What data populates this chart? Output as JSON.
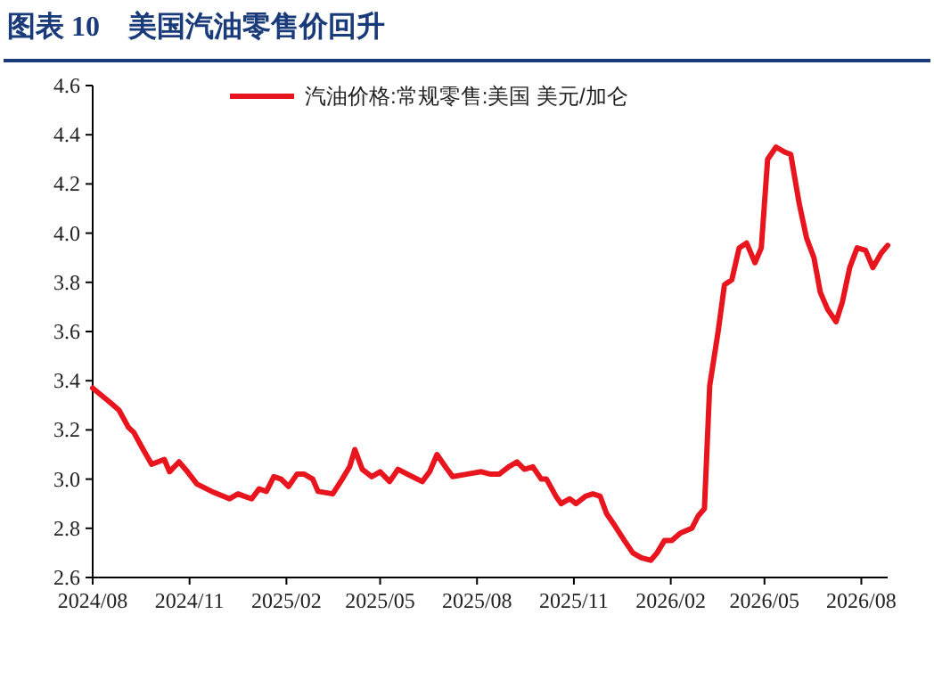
{
  "chart_data": {
    "type": "line",
    "title": "图表 10　美国汽油零售价回升",
    "x": [
      "2024-08-01",
      "2024-08-18",
      "2024-08-26",
      "2024-09-04",
      "2024-09-09",
      "2024-09-18",
      "2024-09-26",
      "2024-10-08",
      "2024-10-13",
      "2024-10-22",
      "2024-10-30",
      "2024-11-08",
      "2024-11-22",
      "2024-12-09",
      "2024-12-17",
      "2024-12-23",
      "2024-12-30",
      "2025-01-06",
      "2025-01-13",
      "2025-01-20",
      "2025-01-27",
      "2025-02-03",
      "2025-02-11",
      "2025-02-18",
      "2025-02-26",
      "2025-03-03",
      "2025-03-17",
      "2025-03-26",
      "2025-04-02",
      "2025-04-07",
      "2025-04-14",
      "2025-04-23",
      "2025-05-01",
      "2025-05-10",
      "2025-05-18",
      "2025-05-27",
      "2025-06-10",
      "2025-06-17",
      "2025-06-24",
      "2025-07-02",
      "2025-07-09",
      "2025-07-22",
      "2025-08-05",
      "2025-08-14",
      "2025-08-22",
      "2025-08-31",
      "2025-09-08",
      "2025-09-15",
      "2025-09-23",
      "2025-10-01",
      "2025-10-06",
      "2025-10-15",
      "2025-10-20",
      "2025-10-28",
      "2025-11-03",
      "2025-11-12",
      "2025-11-19",
      "2025-11-26",
      "2025-12-02",
      "2025-12-10",
      "2025-12-19",
      "2025-12-27",
      "2026-01-04",
      "2026-01-13",
      "2026-01-19",
      "2026-01-26",
      "2026-02-02",
      "2026-02-10",
      "2026-02-21",
      "2026-02-27",
      "2026-03-05",
      "2026-03-10",
      "2026-03-18",
      "2026-03-24",
      "2026-03-31",
      "2026-04-07",
      "2026-04-14",
      "2026-04-22",
      "2026-04-28",
      "2026-05-04",
      "2026-05-12",
      "2026-05-20",
      "2026-05-26",
      "2026-06-03",
      "2026-06-10",
      "2026-06-17",
      "2026-06-23",
      "2026-06-30",
      "2026-07-08",
      "2026-07-14",
      "2026-07-21",
      "2026-07-28",
      "2026-08-05",
      "2026-08-12",
      "2026-08-20",
      "2026-08-26"
    ],
    "series": [
      {
        "name": "汽油价格:常规零售:美国 美元/加仑",
        "color": "#e8141e",
        "values": [
          3.37,
          3.31,
          3.28,
          3.21,
          3.19,
          3.12,
          3.06,
          3.08,
          3.03,
          3.07,
          3.03,
          2.98,
          2.95,
          2.92,
          2.94,
          2.93,
          2.92,
          2.96,
          2.95,
          3.01,
          3.0,
          2.97,
          3.02,
          3.02,
          3.0,
          2.95,
          2.94,
          3.0,
          3.05,
          3.12,
          3.04,
          3.01,
          3.03,
          2.99,
          3.04,
          3.02,
          2.99,
          3.03,
          3.1,
          3.05,
          3.01,
          3.02,
          3.03,
          3.02,
          3.02,
          3.05,
          3.07,
          3.04,
          3.05,
          3.0,
          3.0,
          2.93,
          2.9,
          2.92,
          2.9,
          2.93,
          2.94,
          2.93,
          2.86,
          2.81,
          2.75,
          2.7,
          2.68,
          2.67,
          2.7,
          2.75,
          2.75,
          2.78,
          2.8,
          2.85,
          2.88,
          3.38,
          3.6,
          3.79,
          3.81,
          3.94,
          3.96,
          3.88,
          3.94,
          4.3,
          4.35,
          4.33,
          4.32,
          4.12,
          3.98,
          3.9,
          3.76,
          3.69,
          3.64,
          3.72,
          3.86,
          3.94,
          3.93,
          3.86,
          3.92,
          3.95
        ]
      }
    ],
    "xlim": [
      "2024-08-01",
      "2026-08-26"
    ],
    "xticks": [
      {
        "value": "2024-08-01",
        "label": "2024/08"
      },
      {
        "value": "2024-11-01",
        "label": "2024/11"
      },
      {
        "value": "2025-02-01",
        "label": "2025/02"
      },
      {
        "value": "2025-05-01",
        "label": "2025/05"
      },
      {
        "value": "2025-08-01",
        "label": "2025/08"
      },
      {
        "value": "2025-11-01",
        "label": "2025/11"
      },
      {
        "value": "2026-02-01",
        "label": "2026/02"
      },
      {
        "value": "2026-05-01",
        "label": "2026/05"
      },
      {
        "value": "2026-08-01",
        "label": "2026/08"
      }
    ],
    "ylim": [
      2.6,
      4.6
    ],
    "yticks": [
      {
        "value": 2.6,
        "label": "2.6"
      },
      {
        "value": 2.8,
        "label": "2.8"
      },
      {
        "value": 3,
        "label": "3.0"
      },
      {
        "value": 3.2,
        "label": "3.2"
      },
      {
        "value": 3.4,
        "label": "3.4"
      },
      {
        "value": 3.6,
        "label": "3.6"
      },
      {
        "value": 3.8,
        "label": "3.8"
      },
      {
        "value": 4,
        "label": "4.0"
      },
      {
        "value": 4.2,
        "label": "4.2"
      },
      {
        "value": 4.4,
        "label": "4.4"
      },
      {
        "value": 4.6,
        "label": "4.6"
      }
    ],
    "legend": "top",
    "grid": false,
    "line_style": "solid"
  }
}
